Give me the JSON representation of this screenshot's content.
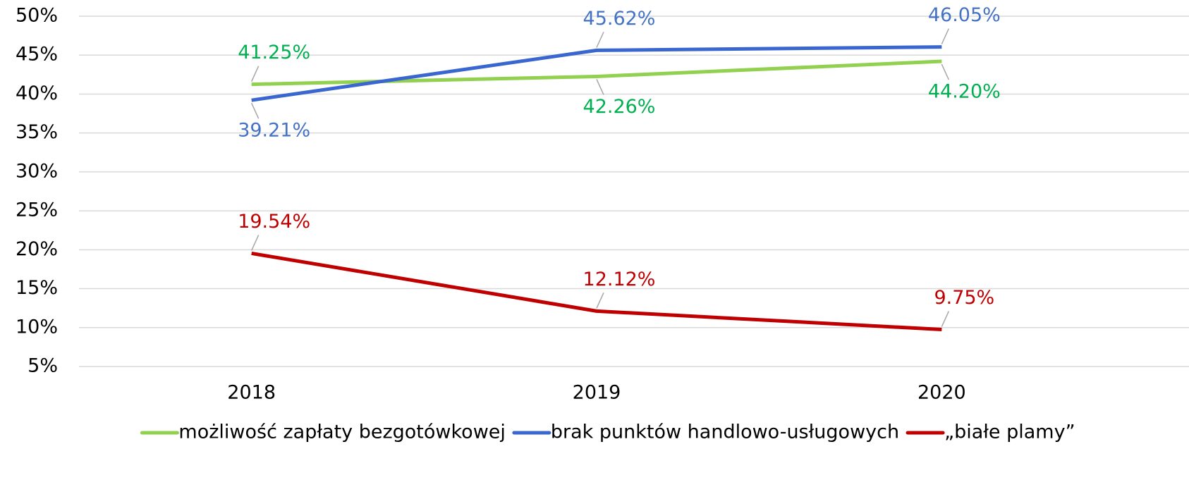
{
  "chart_data": {
    "type": "line",
    "categories": [
      "2018",
      "2019",
      "2020"
    ],
    "series": [
      {
        "name": "możliwość zapłaty bezgotówkowej",
        "color": "#92d050",
        "label_color": "#00b050",
        "values": [
          41.25,
          42.26,
          44.2
        ],
        "value_labels": [
          "41.25%",
          "42.26%",
          "44.20%"
        ]
      },
      {
        "name": "brak punktów handlowo-usługowych",
        "color": "#3a67cf",
        "label_color": "#4472c4",
        "values": [
          39.21,
          45.62,
          46.05
        ],
        "value_labels": [
          "39.21%",
          "45.62%",
          "46.05%"
        ]
      },
      {
        "name": "„białe plamy”",
        "color": "#c00000",
        "label_color": "#c00000",
        "values": [
          19.54,
          12.12,
          9.75
        ],
        "value_labels": [
          "19.54%",
          "12.12%",
          "9.75%"
        ]
      }
    ],
    "ylim": [
      5,
      50
    ],
    "yticks": [
      {
        "value": 5,
        "label": "5%"
      },
      {
        "value": 10,
        "label": "10%"
      },
      {
        "value": 15,
        "label": "15%"
      },
      {
        "value": 20,
        "label": "20%"
      },
      {
        "value": 25,
        "label": "25%"
      },
      {
        "value": 30,
        "label": "30%"
      },
      {
        "value": 35,
        "label": "35%"
      },
      {
        "value": 40,
        "label": "40%"
      },
      {
        "value": 45,
        "label": "45%"
      },
      {
        "value": 50,
        "label": "50%"
      }
    ],
    "grid": true,
    "legend": "bottom"
  }
}
